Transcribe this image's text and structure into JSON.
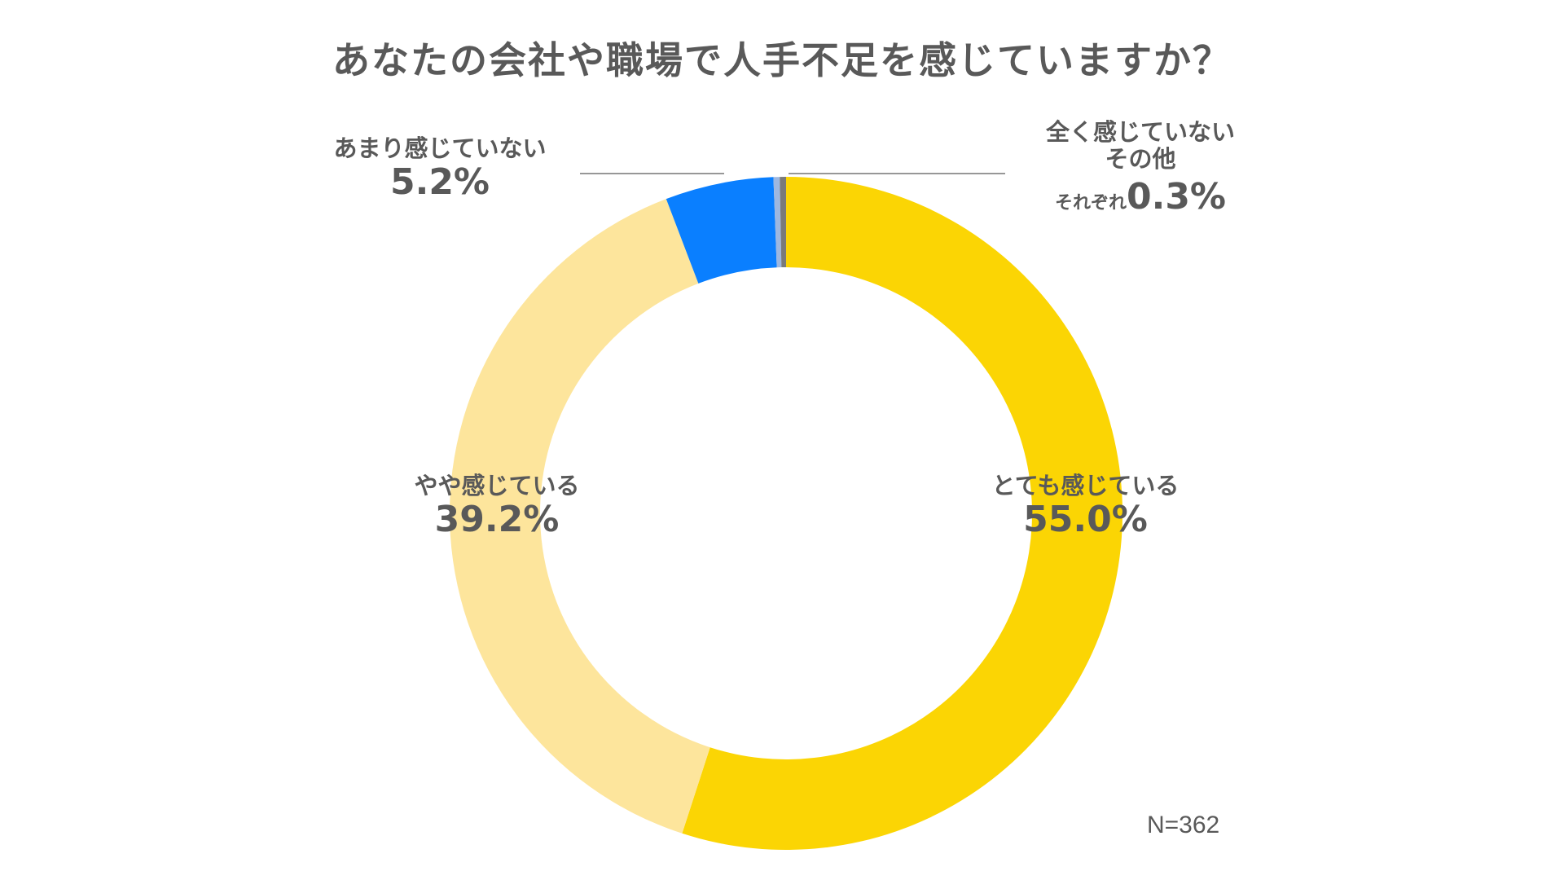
{
  "chart_data": {
    "type": "pie",
    "style": "donut",
    "title": "あなたの会社や職場で人手不足を感じていますか？",
    "categories": [
      "とても感じている",
      "やや感じている",
      "あまり感じていない",
      "全く感じていない",
      "その他"
    ],
    "values": [
      55.0,
      39.2,
      5.2,
      0.3,
      0.3
    ],
    "colors": [
      "#FBD504",
      "#FDE59C",
      "#0A7FFF",
      "#9DB7E0",
      "#7A7A7A"
    ],
    "sample_note": "N=362",
    "labels": {
      "very": {
        "name": "とても感じている",
        "pct": "55.0%"
      },
      "somewhat": {
        "name": "やや感じている",
        "pct": "39.2%"
      },
      "little": {
        "name": "あまり感じていない",
        "pct": "5.2%"
      },
      "none_other": {
        "line1": "全く感じていない",
        "line2": "その他",
        "prefix": "それぞれ",
        "pct": "0.3%"
      }
    }
  }
}
